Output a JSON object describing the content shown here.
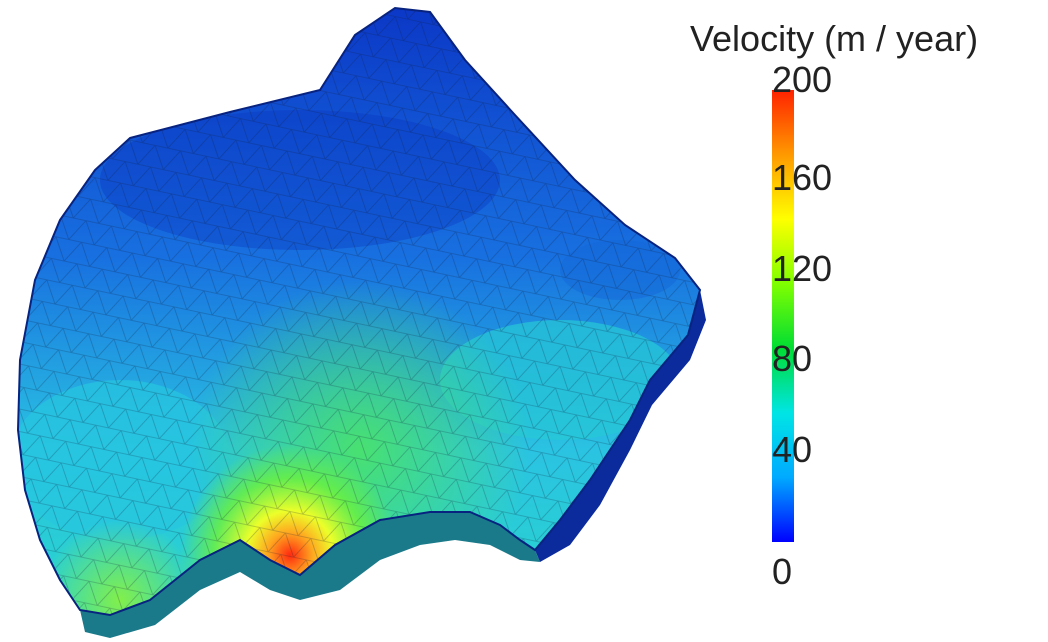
{
  "colorbar": {
    "title": "Velocity (m / year)",
    "min": 0,
    "max": 200,
    "ticks": [
      "200",
      "160",
      "120",
      "80",
      "40",
      "0"
    ],
    "gradient": [
      "#0000ff",
      "#00aaff",
      "#00e5e5",
      "#00dd33",
      "#7fff00",
      "#ffff00",
      "#ff9900",
      "#ff2200"
    ]
  },
  "surface": {
    "color_scale_stops": [
      {
        "v": 0,
        "c": "#0a1f9e"
      },
      {
        "v": 10,
        "c": "#0f3fd6"
      },
      {
        "v": 30,
        "c": "#1e8fe8"
      },
      {
        "v": 55,
        "c": "#25d0e0"
      },
      {
        "v": 85,
        "c": "#34e07a"
      },
      {
        "v": 115,
        "c": "#59f03a"
      },
      {
        "v": 145,
        "c": "#e7ff2c"
      },
      {
        "v": 170,
        "c": "#ffb020"
      },
      {
        "v": 200,
        "c": "#ff2a10"
      }
    ]
  }
}
